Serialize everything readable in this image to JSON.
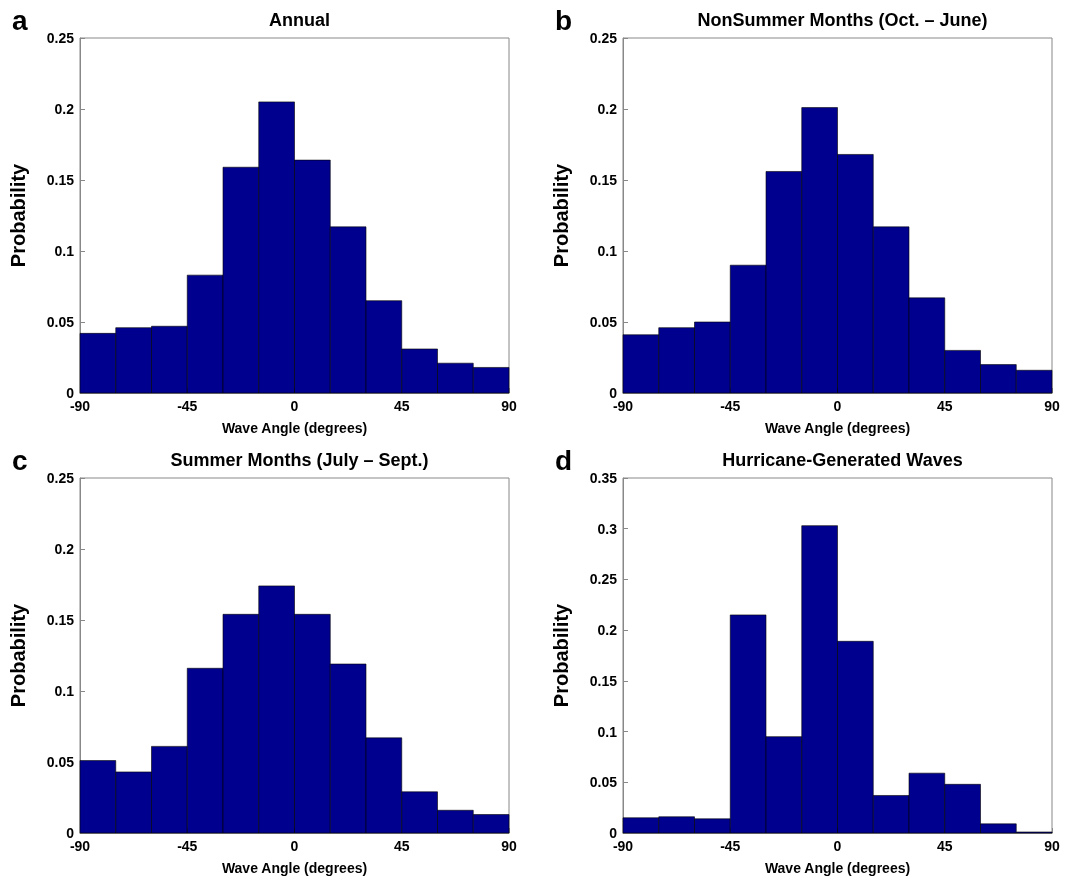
{
  "chart_data": [
    {
      "type": "histogram",
      "title": "Annual",
      "xlabel": "Wave Angle (degrees)",
      "ylabel": "Probability",
      "annotations": [
        "a"
      ],
      "color": "#00008f",
      "bins": [
        -90,
        -75,
        -60,
        -45,
        -30,
        -15,
        0,
        15,
        30,
        45,
        60,
        75,
        90
      ],
      "values": [
        0.042,
        0.046,
        0.047,
        0.083,
        0.159,
        0.205,
        0.164,
        0.117,
        0.065,
        0.031,
        0.021,
        0.018
      ],
      "xlim": [
        -90,
        90
      ],
      "xticks": [
        -90,
        -45,
        0,
        45,
        90
      ],
      "ylim": [
        0,
        0.25
      ],
      "yticks": [
        0,
        0.05,
        0.1,
        0.15,
        0.2,
        0.25
      ],
      "grid": false
    },
    {
      "type": "histogram",
      "title": "NonSummer Months (Oct. – June)",
      "xlabel": "Wave Angle (degrees)",
      "ylabel": "Probability",
      "annotations": [
        "b"
      ],
      "color": "#00008f",
      "bins": [
        -90,
        -75,
        -60,
        -45,
        -30,
        -15,
        0,
        15,
        30,
        45,
        60,
        75,
        90
      ],
      "values": [
        0.041,
        0.046,
        0.05,
        0.09,
        0.156,
        0.201,
        0.168,
        0.117,
        0.067,
        0.03,
        0.02,
        0.016
      ],
      "xlim": [
        -90,
        90
      ],
      "xticks": [
        -90,
        -45,
        0,
        45,
        90
      ],
      "ylim": [
        0,
        0.25
      ],
      "yticks": [
        0,
        0.05,
        0.1,
        0.15,
        0.2,
        0.25
      ],
      "grid": false
    },
    {
      "type": "histogram",
      "title": "Summer Months (July – Sept.)",
      "xlabel": "Wave Angle (degrees)",
      "ylabel": "Probability",
      "annotations": [
        "c"
      ],
      "color": "#00008f",
      "bins": [
        -90,
        -75,
        -60,
        -45,
        -30,
        -15,
        0,
        15,
        30,
        45,
        60,
        75,
        90
      ],
      "values": [
        0.051,
        0.043,
        0.061,
        0.116,
        0.154,
        0.174,
        0.154,
        0.119,
        0.067,
        0.029,
        0.016,
        0.013
      ],
      "xlim": [
        -90,
        90
      ],
      "xticks": [
        -90,
        -45,
        0,
        45,
        90
      ],
      "ylim": [
        0,
        0.25
      ],
      "yticks": [
        0,
        0.05,
        0.1,
        0.15,
        0.2,
        0.25
      ],
      "grid": false
    },
    {
      "type": "histogram",
      "title": "Hurricane-Generated Waves",
      "xlabel": "Wave Angle (degrees)",
      "ylabel": "Probability",
      "annotations": [
        "d"
      ],
      "color": "#00008f",
      "bins": [
        -90,
        -75,
        -60,
        -45,
        -30,
        -15,
        0,
        15,
        30,
        45,
        60,
        75,
        90
      ],
      "values": [
        0.015,
        0.016,
        0.014,
        0.215,
        0.095,
        0.303,
        0.189,
        0.037,
        0.059,
        0.048,
        0.009,
        0.001
      ],
      "xlim": [
        -90,
        90
      ],
      "xticks": [
        -90,
        -45,
        0,
        45,
        90
      ],
      "ylim": [
        0,
        0.35
      ],
      "yticks": [
        0,
        0.05,
        0.1,
        0.15,
        0.2,
        0.25,
        0.3,
        0.35
      ],
      "grid": false
    }
  ]
}
